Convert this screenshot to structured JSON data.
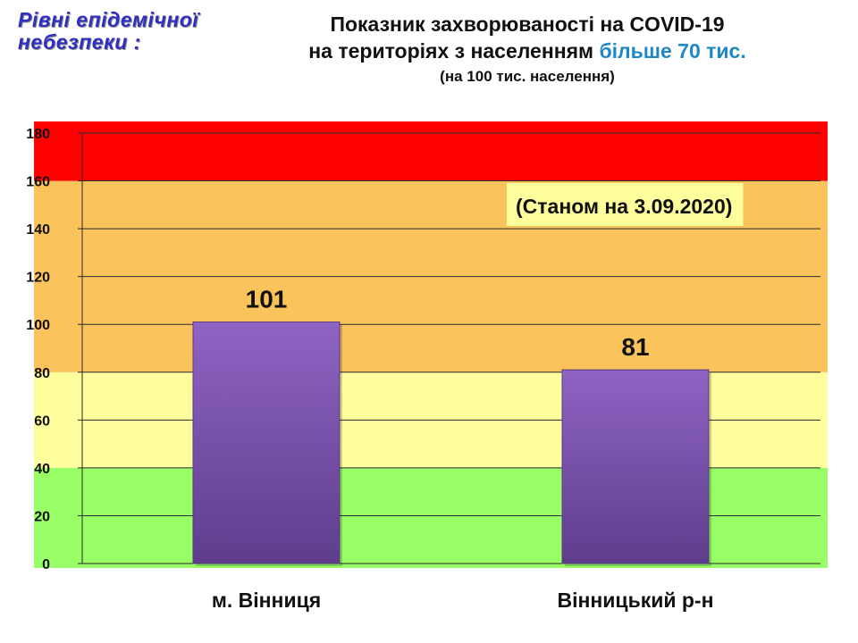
{
  "levels_title": {
    "line1": "Рівні епідемічної",
    "line2": "небезпеки :"
  },
  "title": {
    "line1": "Показник захворюваності на COVID-19",
    "line2_prefix": "на територіях з населенням ",
    "line2_highlight": "більше 70 тис.",
    "line3": "(на 100  тис. населення)"
  },
  "annotation": "(Станом на 3.09.2020)",
  "colors": {
    "red_zone": "#ff0000",
    "orange_zone": "#fac35c",
    "yellow_zone": "#fefe9c",
    "green_zone": "#99ff66",
    "bar": "#7a52ac",
    "highlight_text": "#1e88c6",
    "levels_title": "#2f2fc4"
  },
  "chart_data": {
    "type": "bar",
    "title": "Показник захворюваності на COVID-19 на територіях з населенням більше 70 тис. (на 100  тис. населення)",
    "categories": [
      "м. Вінниця",
      "Вінницький р-н"
    ],
    "values": [
      101,
      81
    ],
    "data_labels": [
      "101",
      "81"
    ],
    "ylim": [
      0,
      180
    ],
    "yticks": [
      "0",
      "20",
      "40",
      "60",
      "80",
      "100",
      "120",
      "140",
      "160",
      "180"
    ],
    "grid": true,
    "zones": [
      {
        "from": 0,
        "to": 40,
        "color": "#99ff66"
      },
      {
        "from": 40,
        "to": 80,
        "color": "#fefe9c"
      },
      {
        "from": 80,
        "to": 160,
        "color": "#fac35c"
      },
      {
        "from": 160,
        "to": 180,
        "color": "#ff0000"
      }
    ]
  }
}
